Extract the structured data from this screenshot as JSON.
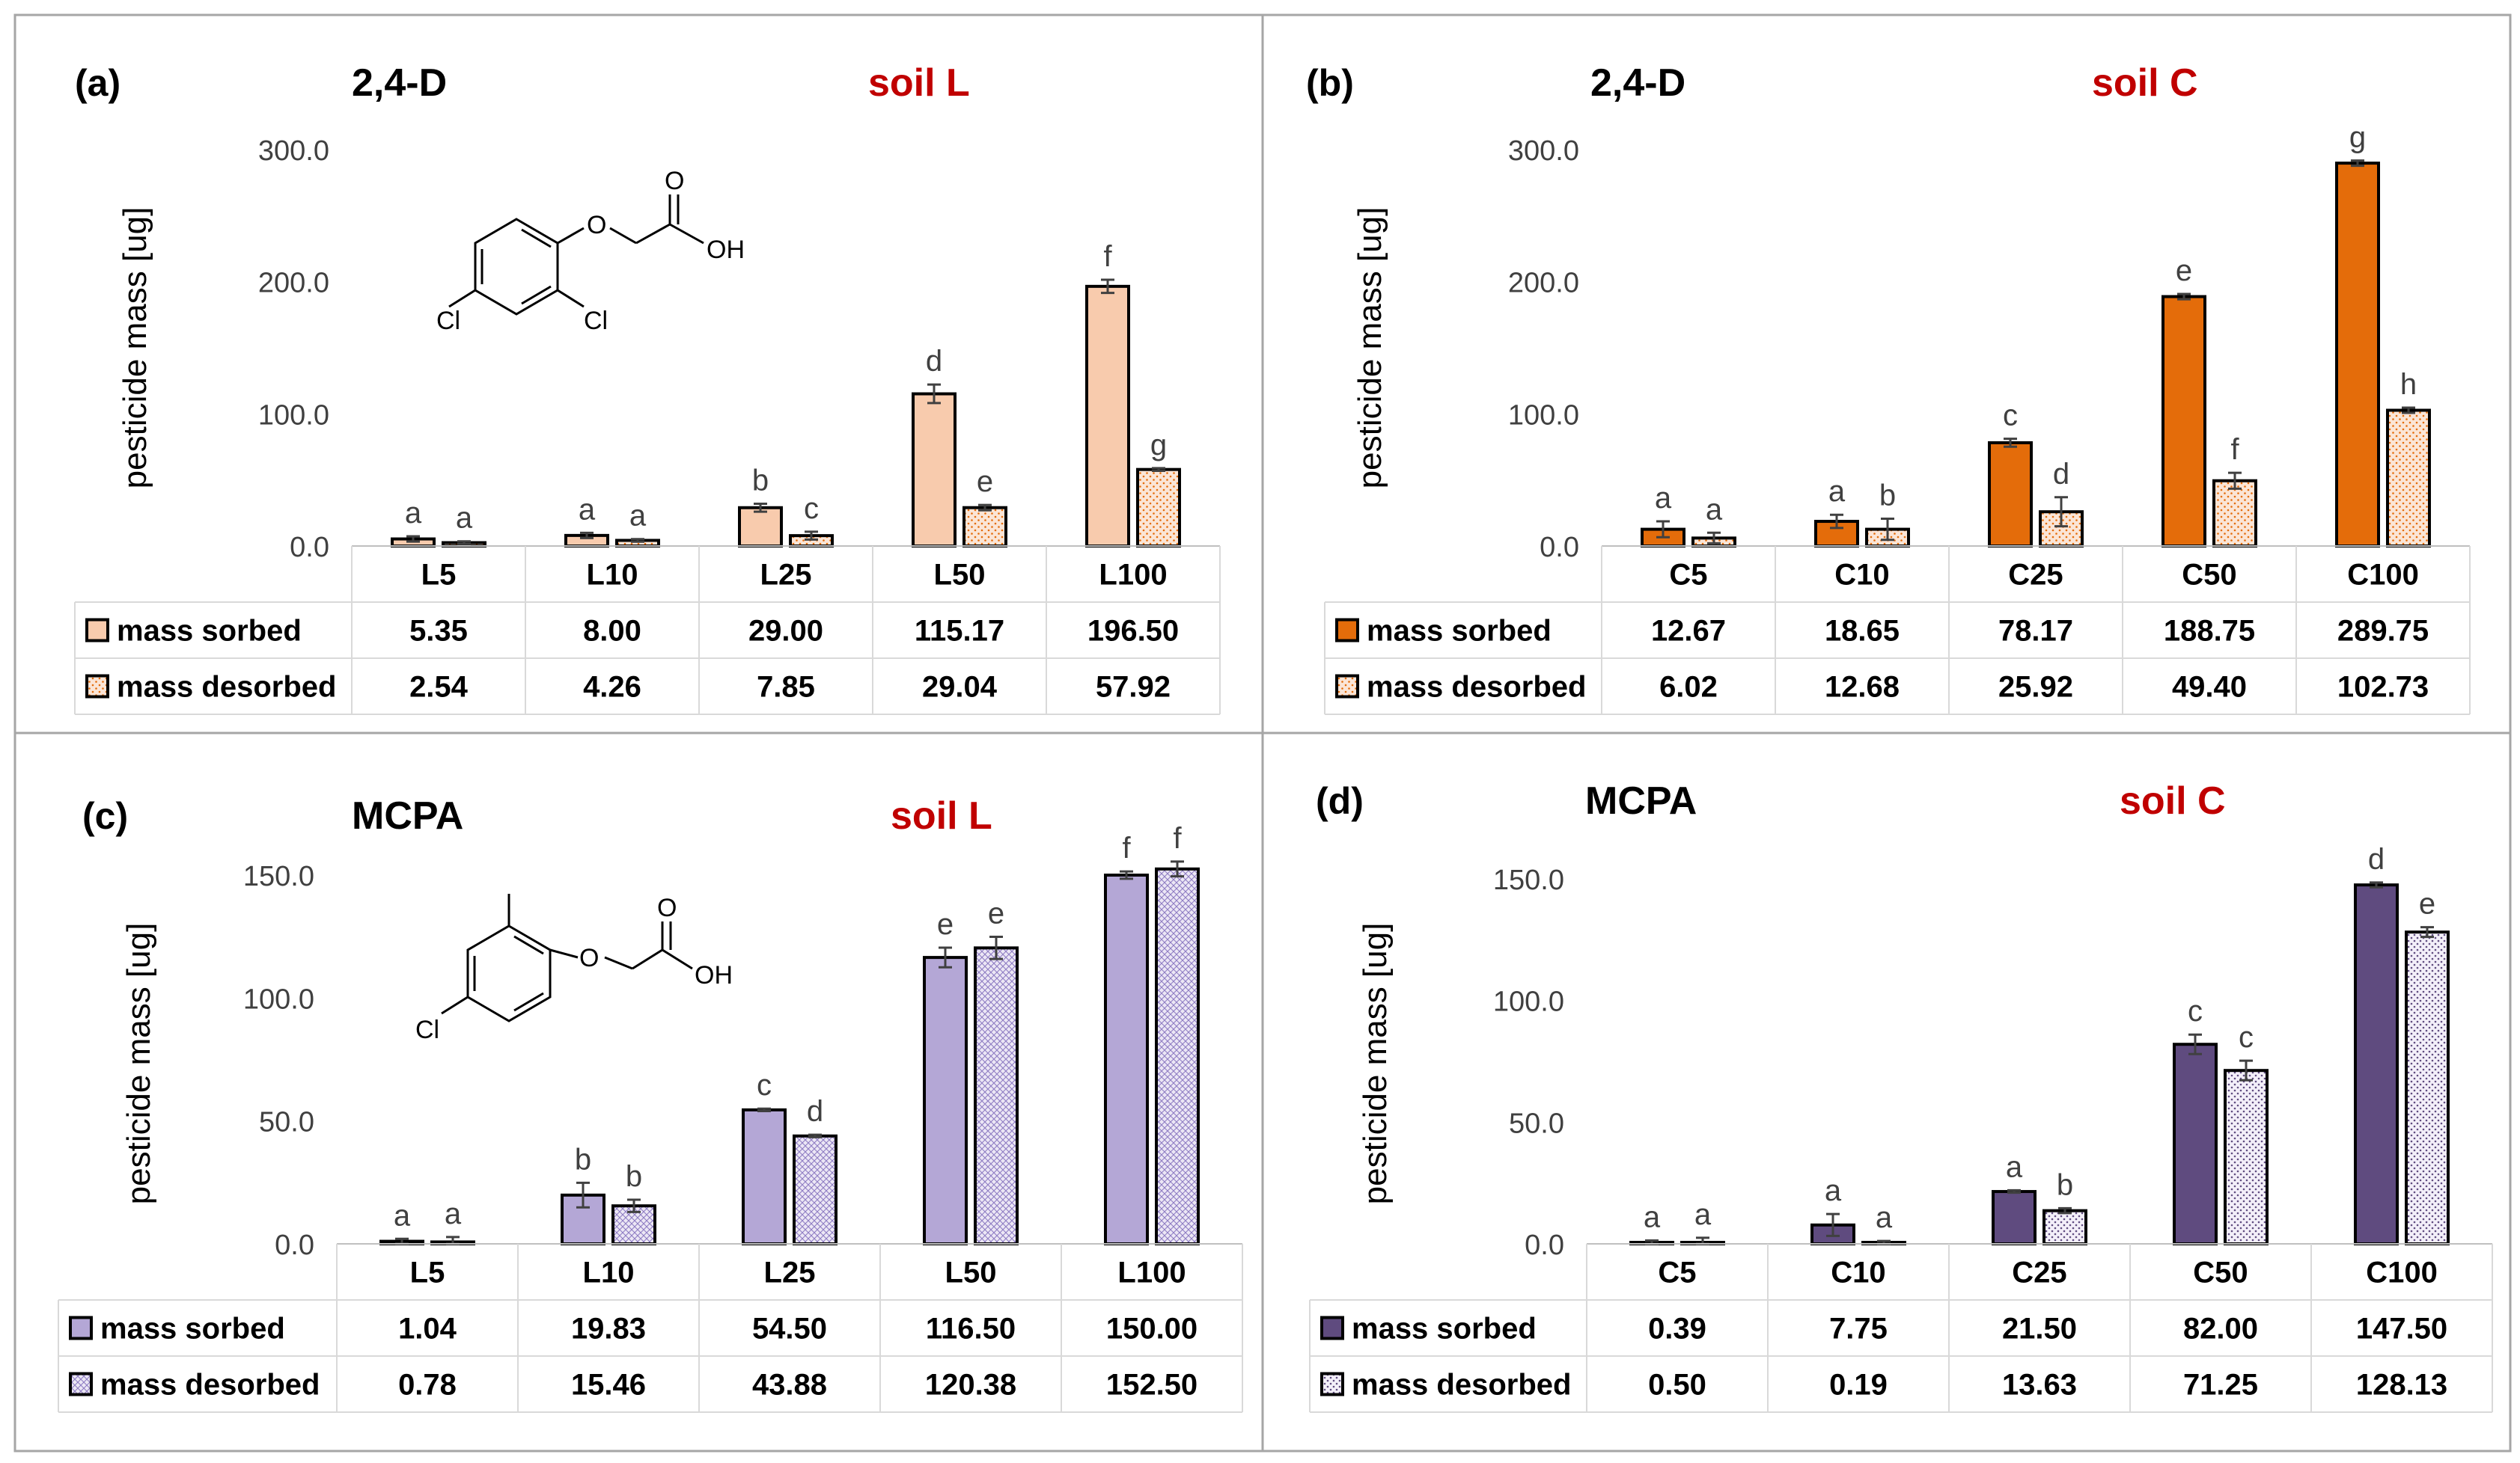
{
  "series_labels": [
    "mass sorbed",
    "mass desorbed"
  ],
  "y_axis_label": "pesticide mass [ug]",
  "colors": {
    "frame": "#a6a6a6",
    "soil_label": "#c00000",
    "sorbed_L_24D": "#f8cbad",
    "sorbed_C_24D": "#e46c0a",
    "sorbed_L_MCPA": "#b4a7d6",
    "sorbed_C_MCPA": "#5f4b7f",
    "desorbed_24D": "#f4b183",
    "desorbed_MCPA": "#8e7cc3",
    "errorbar": "#404040",
    "table_border": "#d9d9d9"
  },
  "structures": {
    "d24": {
      "cl1": "Cl",
      "cl2": "Cl",
      "o1": "O",
      "o2": "O",
      "oh": "OH"
    },
    "mcpa": {
      "cl1": "Cl",
      "o1": "O",
      "o2": "O",
      "oh": "OH"
    }
  },
  "chart_data": [
    {
      "id": "a",
      "panel_label": "(a)",
      "pesticide": "2,4-D",
      "soil": "soil L",
      "type": "bar",
      "categories": [
        "L5",
        "L10",
        "L25",
        "L50",
        "L100"
      ],
      "ylim": [
        0,
        300
      ],
      "yticks": [
        "0.0",
        "100.0",
        "200.0",
        "300.0"
      ],
      "series": [
        {
          "name": "mass sorbed",
          "values": [
            5.35,
            8.0,
            29.0,
            115.17,
            196.5
          ],
          "table": [
            "5.35",
            "8.00",
            "29.00",
            "115.17",
            "196.50"
          ],
          "errors": [
            2,
            2,
            3,
            7,
            5
          ],
          "letters": [
            "a",
            "a",
            "b",
            "d",
            "f"
          ]
        },
        {
          "name": "mass desorbed",
          "values": [
            2.54,
            4.26,
            7.85,
            29.04,
            57.92
          ],
          "table": [
            "2.54",
            "4.26",
            "7.85",
            "29.04",
            "57.92"
          ],
          "errors": [
            1,
            1,
            3,
            2,
            1
          ],
          "letters": [
            "a",
            "a",
            "c",
            "e",
            "g"
          ]
        }
      ]
    },
    {
      "id": "b",
      "panel_label": "(b)",
      "pesticide": "2,4-D",
      "soil": "soil C",
      "type": "bar",
      "categories": [
        "C5",
        "C10",
        "C25",
        "C50",
        "C100"
      ],
      "ylim": [
        0,
        300
      ],
      "yticks": [
        "0.0",
        "100.0",
        "200.0",
        "300.0"
      ],
      "series": [
        {
          "name": "mass sorbed",
          "values": [
            12.67,
            18.65,
            78.17,
            188.75,
            289.75
          ],
          "table": [
            "12.67",
            "18.65",
            "78.17",
            "188.75",
            "289.75"
          ],
          "errors": [
            6,
            5,
            3,
            2,
            2
          ],
          "letters": [
            "a",
            "a",
            "c",
            "e",
            "g"
          ]
        },
        {
          "name": "mass desorbed",
          "values": [
            6.02,
            12.68,
            25.92,
            49.4,
            102.73
          ],
          "table": [
            "6.02",
            "12.68",
            "25.92",
            "49.40",
            "102.73"
          ],
          "errors": [
            4,
            8,
            11,
            6,
            2
          ],
          "letters": [
            "a",
            "b",
            "d",
            "f",
            "h"
          ]
        }
      ]
    },
    {
      "id": "c",
      "panel_label": "(c)",
      "pesticide": "MCPA",
      "soil": "soil L",
      "type": "bar",
      "categories": [
        "L5",
        "L10",
        "L25",
        "L50",
        "L100"
      ],
      "ylim": [
        0,
        150
      ],
      "yticks": [
        "0.0",
        "50.0",
        "100.0",
        "150.0"
      ],
      "series": [
        {
          "name": "mass sorbed",
          "values": [
            1.04,
            19.83,
            54.5,
            116.5,
            150.0
          ],
          "table": [
            "1.04",
            "19.83",
            "54.50",
            "116.50",
            "150.00"
          ],
          "errors": [
            1,
            5,
            0.5,
            4,
            1.5
          ],
          "letters": [
            "a",
            "b",
            "c",
            "e",
            "f"
          ]
        },
        {
          "name": "mass desorbed",
          "values": [
            0.78,
            15.46,
            43.88,
            120.38,
            152.5
          ],
          "table": [
            "0.78",
            "15.46",
            "43.88",
            "120.38",
            "152.50"
          ],
          "errors": [
            2,
            2.5,
            0.5,
            4.5,
            3
          ],
          "letters": [
            "a",
            "b",
            "d",
            "e",
            "f"
          ]
        }
      ]
    },
    {
      "id": "d",
      "panel_label": "(d)",
      "pesticide": "MCPA",
      "soil": "soil C",
      "type": "bar",
      "categories": [
        "C5",
        "C10",
        "C25",
        "C50",
        "C100"
      ],
      "ylim": [
        0,
        150
      ],
      "yticks": [
        "0.0",
        "50.0",
        "100.0",
        "150.0"
      ],
      "series": [
        {
          "name": "mass sorbed",
          "values": [
            0.39,
            7.75,
            21.5,
            82.0,
            147.5
          ],
          "table": [
            "0.39",
            "7.75",
            "21.50",
            "82.00",
            "147.50"
          ],
          "errors": [
            1,
            4.5,
            0.5,
            4,
            1
          ],
          "letters": [
            "a",
            "a",
            "a",
            "c",
            "d"
          ]
        },
        {
          "name": "mass desorbed",
          "values": [
            0.5,
            0.19,
            13.63,
            71.25,
            128.13
          ],
          "table": [
            "0.50",
            "0.19",
            "13.63",
            "71.25",
            "128.13"
          ],
          "errors": [
            2,
            1,
            1,
            4,
            2
          ],
          "letters": [
            "a",
            "a",
            "b",
            "c",
            "e"
          ]
        }
      ]
    }
  ]
}
